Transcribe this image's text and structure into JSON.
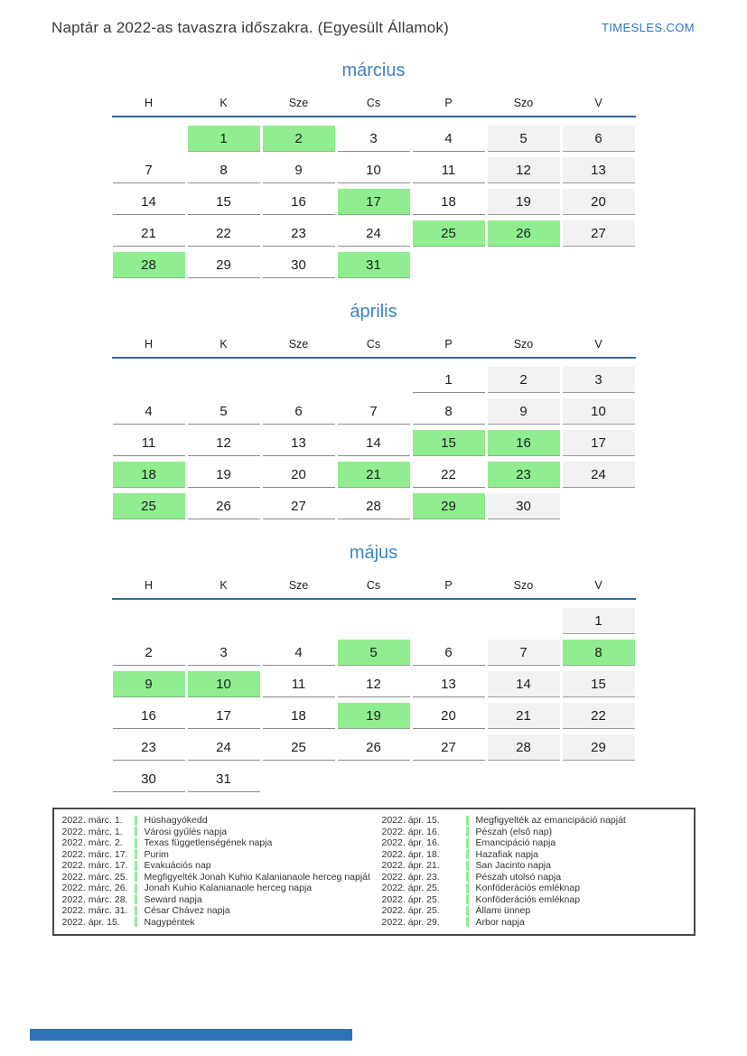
{
  "header": {
    "title": "Naptár a 2022-as tavaszra időszakra. (Egyesült Államok)",
    "site": "TIMESLES.COM"
  },
  "weekdays": [
    "H",
    "K",
    "Sze",
    "Cs",
    "P",
    "Szo",
    "V"
  ],
  "months": [
    {
      "name": "március",
      "weeks": [
        [
          {
            "d": "",
            "t": "e"
          },
          {
            "d": "1",
            "t": "h"
          },
          {
            "d": "2",
            "t": "h"
          },
          {
            "d": "3",
            "t": "n"
          },
          {
            "d": "4",
            "t": "n"
          },
          {
            "d": "5",
            "t": "w"
          },
          {
            "d": "6",
            "t": "w"
          }
        ],
        [
          {
            "d": "7",
            "t": "n"
          },
          {
            "d": "8",
            "t": "n"
          },
          {
            "d": "9",
            "t": "n"
          },
          {
            "d": "10",
            "t": "n"
          },
          {
            "d": "11",
            "t": "n"
          },
          {
            "d": "12",
            "t": "w"
          },
          {
            "d": "13",
            "t": "w"
          }
        ],
        [
          {
            "d": "14",
            "t": "n"
          },
          {
            "d": "15",
            "t": "n"
          },
          {
            "d": "16",
            "t": "n"
          },
          {
            "d": "17",
            "t": "h"
          },
          {
            "d": "18",
            "t": "n"
          },
          {
            "d": "19",
            "t": "w"
          },
          {
            "d": "20",
            "t": "w"
          }
        ],
        [
          {
            "d": "21",
            "t": "n"
          },
          {
            "d": "22",
            "t": "n"
          },
          {
            "d": "23",
            "t": "n"
          },
          {
            "d": "24",
            "t": "n"
          },
          {
            "d": "25",
            "t": "h"
          },
          {
            "d": "26",
            "t": "h"
          },
          {
            "d": "27",
            "t": "w"
          }
        ],
        [
          {
            "d": "28",
            "t": "h"
          },
          {
            "d": "29",
            "t": "n"
          },
          {
            "d": "30",
            "t": "n"
          },
          {
            "d": "31",
            "t": "h"
          },
          {
            "d": "",
            "t": "e"
          },
          {
            "d": "",
            "t": "e"
          },
          {
            "d": "",
            "t": "e"
          }
        ]
      ]
    },
    {
      "name": "április",
      "weeks": [
        [
          {
            "d": "",
            "t": "e"
          },
          {
            "d": "",
            "t": "e"
          },
          {
            "d": "",
            "t": "e"
          },
          {
            "d": "",
            "t": "e"
          },
          {
            "d": "1",
            "t": "n"
          },
          {
            "d": "2",
            "t": "w"
          },
          {
            "d": "3",
            "t": "w"
          }
        ],
        [
          {
            "d": "4",
            "t": "n"
          },
          {
            "d": "5",
            "t": "n"
          },
          {
            "d": "6",
            "t": "n"
          },
          {
            "d": "7",
            "t": "n"
          },
          {
            "d": "8",
            "t": "n"
          },
          {
            "d": "9",
            "t": "w"
          },
          {
            "d": "10",
            "t": "w"
          }
        ],
        [
          {
            "d": "11",
            "t": "n"
          },
          {
            "d": "12",
            "t": "n"
          },
          {
            "d": "13",
            "t": "n"
          },
          {
            "d": "14",
            "t": "n"
          },
          {
            "d": "15",
            "t": "h"
          },
          {
            "d": "16",
            "t": "h"
          },
          {
            "d": "17",
            "t": "w"
          }
        ],
        [
          {
            "d": "18",
            "t": "h"
          },
          {
            "d": "19",
            "t": "n"
          },
          {
            "d": "20",
            "t": "n"
          },
          {
            "d": "21",
            "t": "h"
          },
          {
            "d": "22",
            "t": "n"
          },
          {
            "d": "23",
            "t": "h"
          },
          {
            "d": "24",
            "t": "w"
          }
        ],
        [
          {
            "d": "25",
            "t": "h"
          },
          {
            "d": "26",
            "t": "n"
          },
          {
            "d": "27",
            "t": "n"
          },
          {
            "d": "28",
            "t": "n"
          },
          {
            "d": "29",
            "t": "h"
          },
          {
            "d": "30",
            "t": "w"
          },
          {
            "d": "",
            "t": "e"
          }
        ]
      ]
    },
    {
      "name": "május",
      "weeks": [
        [
          {
            "d": "",
            "t": "e"
          },
          {
            "d": "",
            "t": "e"
          },
          {
            "d": "",
            "t": "e"
          },
          {
            "d": "",
            "t": "e"
          },
          {
            "d": "",
            "t": "e"
          },
          {
            "d": "",
            "t": "e"
          },
          {
            "d": "1",
            "t": "w"
          }
        ],
        [
          {
            "d": "2",
            "t": "n"
          },
          {
            "d": "3",
            "t": "n"
          },
          {
            "d": "4",
            "t": "n"
          },
          {
            "d": "5",
            "t": "h"
          },
          {
            "d": "6",
            "t": "n"
          },
          {
            "d": "7",
            "t": "w"
          },
          {
            "d": "8",
            "t": "h"
          }
        ],
        [
          {
            "d": "9",
            "t": "h"
          },
          {
            "d": "10",
            "t": "h"
          },
          {
            "d": "11",
            "t": "n"
          },
          {
            "d": "12",
            "t": "n"
          },
          {
            "d": "13",
            "t": "n"
          },
          {
            "d": "14",
            "t": "w"
          },
          {
            "d": "15",
            "t": "w"
          }
        ],
        [
          {
            "d": "16",
            "t": "n"
          },
          {
            "d": "17",
            "t": "n"
          },
          {
            "d": "18",
            "t": "n"
          },
          {
            "d": "19",
            "t": "h"
          },
          {
            "d": "20",
            "t": "n"
          },
          {
            "d": "21",
            "t": "w"
          },
          {
            "d": "22",
            "t": "w"
          }
        ],
        [
          {
            "d": "23",
            "t": "n"
          },
          {
            "d": "24",
            "t": "n"
          },
          {
            "d": "25",
            "t": "n"
          },
          {
            "d": "26",
            "t": "n"
          },
          {
            "d": "27",
            "t": "n"
          },
          {
            "d": "28",
            "t": "w"
          },
          {
            "d": "29",
            "t": "w"
          }
        ],
        [
          {
            "d": "30",
            "t": "n"
          },
          {
            "d": "31",
            "t": "n"
          },
          {
            "d": "",
            "t": "e"
          },
          {
            "d": "",
            "t": "e"
          },
          {
            "d": "",
            "t": "e"
          },
          {
            "d": "",
            "t": "e"
          },
          {
            "d": "",
            "t": "e"
          }
        ]
      ]
    }
  ],
  "legend": {
    "columns": [
      [
        {
          "date": "2022. márc. 1.",
          "name": "Húshagyókedd"
        },
        {
          "date": "2022. márc. 1.",
          "name": "Városi gyűlés napja"
        },
        {
          "date": "2022. márc. 2.",
          "name": "Texas függetlenségének napja"
        },
        {
          "date": "2022. márc. 17.",
          "name": "Purim"
        },
        {
          "date": "2022. márc. 17.",
          "name": "Evakuációs nap"
        },
        {
          "date": "2022. márc. 25.",
          "name": "Megfigyelték Jonah Kuhio Kalanianaole herceg napját"
        },
        {
          "date": "2022. márc. 26.",
          "name": "Jonah Kuhio Kalanianaole herceg napja"
        },
        {
          "date": "2022. márc. 28.",
          "name": "Seward napja"
        },
        {
          "date": "2022. márc. 31.",
          "name": "César Chávez napja"
        },
        {
          "date": "2022. ápr. 15.",
          "name": "Nagypéntek"
        }
      ],
      [
        {
          "date": "2022. ápr. 15.",
          "name": "Megfigyelték az emancipáció napját"
        },
        {
          "date": "2022. ápr. 16.",
          "name": "Pészah (első nap)"
        },
        {
          "date": "2022. ápr. 16.",
          "name": "Emancipáció napja"
        },
        {
          "date": "2022. ápr. 18.",
          "name": "Hazafiak napja"
        },
        {
          "date": "2022. ápr. 21.",
          "name": "San Jacinto napja"
        },
        {
          "date": "2022. ápr. 23.",
          "name": "Pészah utolsó napja"
        },
        {
          "date": "2022. ápr. 25.",
          "name": "Konföderációs emléknap"
        },
        {
          "date": "2022. ápr. 25.",
          "name": "Konföderációs emléknap"
        },
        {
          "date": "2022. ápr. 25.",
          "name": "Állami ünnep"
        },
        {
          "date": "2022. ápr. 29.",
          "name": "Arbor napja"
        }
      ]
    ]
  },
  "colors": {
    "holiday_green": "#90ee90",
    "weekend_gray": "#f2f2f2",
    "month_title_blue": "#3d82c4",
    "header_rule_blue": "#33679b",
    "link_blue": "#2f71c2",
    "footer_bar_blue": "#2e74b9"
  }
}
